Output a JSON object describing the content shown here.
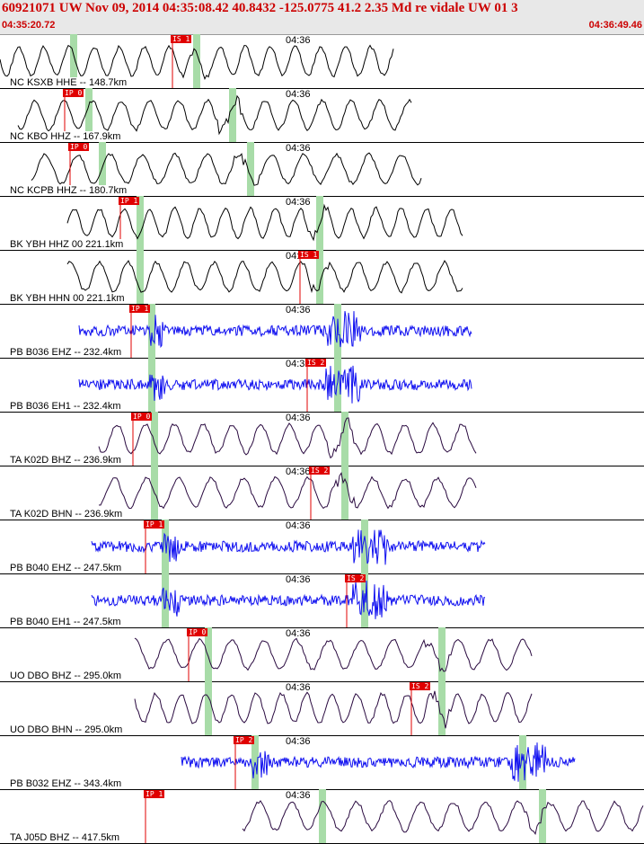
{
  "header": {
    "title": "60921071 UW Nov 09, 2014 04:35:08.42    40.8432 -125.0775 41.2 2.35 Md re vidale UW 01    3",
    "time_start": "04:35:20.72",
    "time_end": "04:36:49.46"
  },
  "minute_label": "04:36",
  "colors": {
    "header_bg": "#e8e8e8",
    "red": "#e00000",
    "blue_trace": "#1010f0",
    "black_trace": "#000000",
    "purple_trace": "#2a0a40",
    "green_window": "#a8dca8"
  },
  "panels": [
    {
      "label": "NC KSXB HHE -- 148.7km",
      "pick_label": "IS 1",
      "color": "black",
      "kind": "lowfreq"
    },
    {
      "label": "NC KBO HHZ -- 167.9km",
      "pick_label": "IP 0",
      "color": "black",
      "kind": "lowfreq"
    },
    {
      "label": "NC KCPB HHZ -- 180.7km",
      "pick_label": "IP 0",
      "color": "black",
      "kind": "lowfreq"
    },
    {
      "label": "BK YBH HHZ 00 221.1km",
      "pick_label": "IP 1",
      "color": "black",
      "kind": "lowfreq"
    },
    {
      "label": "BK YBH HHN 00 221.1km",
      "pick_label": "IS 1",
      "color": "black",
      "kind": "lowfreq"
    },
    {
      "label": "PB B036 EHZ -- 232.4km",
      "pick_label": "IP 1",
      "color": "blue",
      "kind": "highfreq"
    },
    {
      "label": "PB B036 EH1 -- 232.4km",
      "pick_label": "IS 2",
      "color": "blue",
      "kind": "highfreq"
    },
    {
      "label": "TA K02D BHZ -- 236.9km",
      "pick_label": "IP 0",
      "color": "purple",
      "kind": "lowfreq"
    },
    {
      "label": "TA K02D BHN -- 236.9km",
      "pick_label": "IS 2",
      "color": "purple",
      "kind": "lowfreq"
    },
    {
      "label": "PB B040 EHZ -- 247.5km",
      "pick_label": "IP 1",
      "color": "blue",
      "kind": "highfreq"
    },
    {
      "label": "PB B040 EH1 -- 247.5km",
      "pick_label": "IS 2",
      "color": "blue",
      "kind": "highfreq"
    },
    {
      "label": "UO DBO BHZ -- 295.0km",
      "pick_label": "IP 0",
      "color": "purple",
      "kind": "lowfreq"
    },
    {
      "label": "UO DBO BHN -- 295.0km",
      "pick_label": "IS 2",
      "color": "purple",
      "kind": "lowfreq"
    },
    {
      "label": "PB B032 EHZ -- 343.4km",
      "pick_label": "IP 2",
      "color": "blue",
      "kind": "highfreq"
    },
    {
      "label": "TA J05D BHZ -- 417.5km",
      "pick_label": "IP 1",
      "color": "purple",
      "kind": "lowfreq"
    }
  ]
}
